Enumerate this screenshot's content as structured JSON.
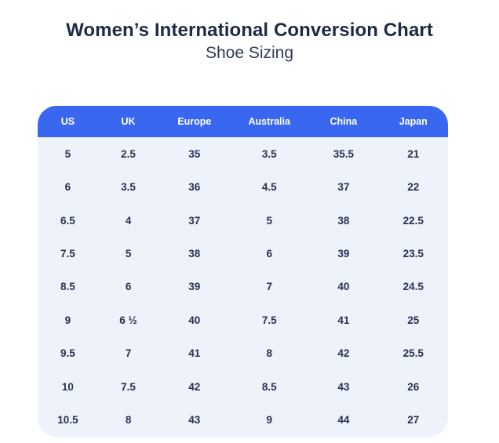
{
  "header": {
    "title": "Women’s International Conversion Chart",
    "subtitle": "Shoe Sizing"
  },
  "chart_data": {
    "type": "table",
    "title": "Women’s International Conversion Chart",
    "subtitle": "Shoe Sizing",
    "columns": [
      "US",
      "UK",
      "Europe",
      "Australia",
      "China",
      "Japan"
    ],
    "rows": [
      [
        "5",
        "2.5",
        "35",
        "3.5",
        "35.5",
        "21"
      ],
      [
        "6",
        "3.5",
        "36",
        "4.5",
        "37",
        "22"
      ],
      [
        "6.5",
        "4",
        "37",
        "5",
        "38",
        "22.5"
      ],
      [
        "7.5",
        "5",
        "38",
        "6",
        "39",
        "23.5"
      ],
      [
        "8.5",
        "6",
        "39",
        "7",
        "40",
        "24.5"
      ],
      [
        "9",
        "6 ½",
        "40",
        "7.5",
        "41",
        "25"
      ],
      [
        "9.5",
        "7",
        "41",
        "8",
        "42",
        "25.5"
      ],
      [
        "10",
        "7.5",
        "42",
        "8.5",
        "43",
        "26"
      ],
      [
        "10.5",
        "8",
        "43",
        "9",
        "44",
        "27"
      ]
    ]
  },
  "colors": {
    "header_bg": "#3a67f0",
    "header_text": "#ffffff",
    "body_bg": "#edf2fb",
    "body_text": "#27314f",
    "title_text": "#202a45",
    "subtitle_text": "#2f3a57",
    "page_bg": "#ffffff"
  }
}
